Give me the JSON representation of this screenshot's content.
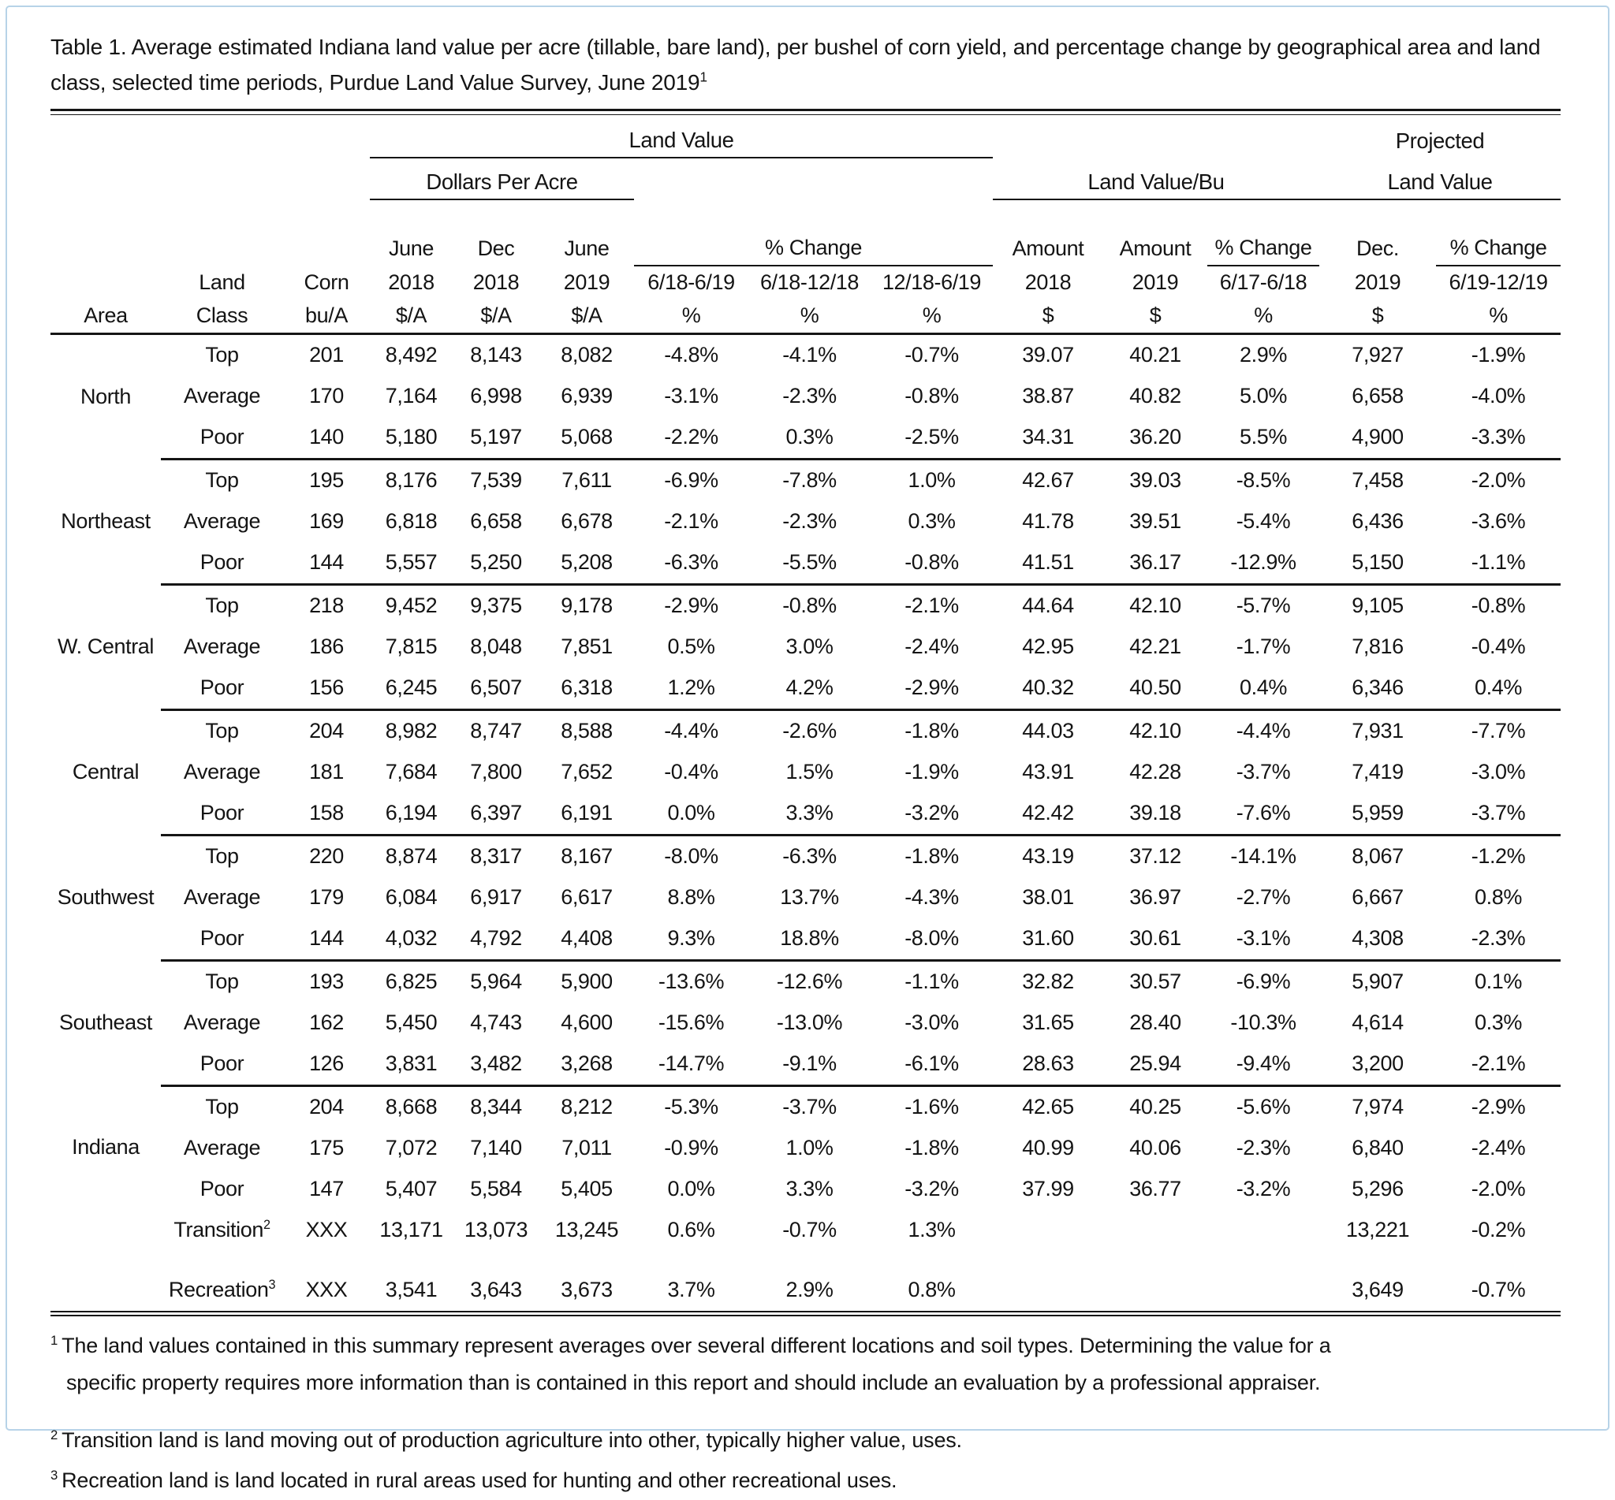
{
  "title": {
    "text": "Table 1. Average estimated Indiana land value per acre (tillable, bare land), per bushel of corn yield, and percentage change by geographical area and land class, selected time periods, Purdue Land Value Survey, June 2019",
    "superscript": "1"
  },
  "table": {
    "head": {
      "land_value": "Land Value",
      "dollars_per_acre": "Dollars Per Acre",
      "pct_change": "% Change",
      "land_value_bu": "Land Value/Bu",
      "projected_l1": "Projected",
      "projected_l2": "Land Value",
      "area": "Area",
      "land": "Land",
      "class": "Class",
      "corn": "Corn",
      "bua": "bu/A",
      "june": "June",
      "dec": "Dec",
      "dec_dot": "Dec.",
      "y2018": "2018",
      "y2019": "2019",
      "dpa": "$/A",
      "dollar": "$",
      "pct": "%",
      "amount": "Amount",
      "p_618_619": "6/18-6/19",
      "p_618_1218": "6/18-12/18",
      "p_1218_619": "12/18-6/19",
      "p_617_618": "6/17-6/18",
      "p_619_1219": "6/19-12/19"
    },
    "sections": [
      {
        "area": "North",
        "rows": [
          {
            "land_class": "Top",
            "sup": "",
            "values": [
              "201",
              "8,492",
              "8,143",
              "8,082",
              "-4.8%",
              "-4.1%",
              "-0.7%",
              "39.07",
              "40.21",
              "2.9%",
              "7,927",
              "-1.9%"
            ]
          },
          {
            "land_class": "Average",
            "sup": "",
            "values": [
              "170",
              "7,164",
              "6,998",
              "6,939",
              "-3.1%",
              "-2.3%",
              "-0.8%",
              "38.87",
              "40.82",
              "5.0%",
              "6,658",
              "-4.0%"
            ]
          },
          {
            "land_class": "Poor",
            "sup": "",
            "values": [
              "140",
              "5,180",
              "5,197",
              "5,068",
              "-2.2%",
              "0.3%",
              "-2.5%",
              "34.31",
              "36.20",
              "5.5%",
              "4,900",
              "-3.3%"
            ]
          }
        ]
      },
      {
        "area": "Northeast",
        "rows": [
          {
            "land_class": "Top",
            "sup": "",
            "values": [
              "195",
              "8,176",
              "7,539",
              "7,611",
              "-6.9%",
              "-7.8%",
              "1.0%",
              "42.67",
              "39.03",
              "-8.5%",
              "7,458",
              "-2.0%"
            ]
          },
          {
            "land_class": "Average",
            "sup": "",
            "values": [
              "169",
              "6,818",
              "6,658",
              "6,678",
              "-2.1%",
              "-2.3%",
              "0.3%",
              "41.78",
              "39.51",
              "-5.4%",
              "6,436",
              "-3.6%"
            ]
          },
          {
            "land_class": "Poor",
            "sup": "",
            "values": [
              "144",
              "5,557",
              "5,250",
              "5,208",
              "-6.3%",
              "-5.5%",
              "-0.8%",
              "41.51",
              "36.17",
              "-12.9%",
              "5,150",
              "-1.1%"
            ]
          }
        ]
      },
      {
        "area": "W. Central",
        "rows": [
          {
            "land_class": "Top",
            "sup": "",
            "values": [
              "218",
              "9,452",
              "9,375",
              "9,178",
              "-2.9%",
              "-0.8%",
              "-2.1%",
              "44.64",
              "42.10",
              "-5.7%",
              "9,105",
              "-0.8%"
            ]
          },
          {
            "land_class": "Average",
            "sup": "",
            "values": [
              "186",
              "7,815",
              "8,048",
              "7,851",
              "0.5%",
              "3.0%",
              "-2.4%",
              "42.95",
              "42.21",
              "-1.7%",
              "7,816",
              "-0.4%"
            ]
          },
          {
            "land_class": "Poor",
            "sup": "",
            "values": [
              "156",
              "6,245",
              "6,507",
              "6,318",
              "1.2%",
              "4.2%",
              "-2.9%",
              "40.32",
              "40.50",
              "0.4%",
              "6,346",
              "0.4%"
            ]
          }
        ]
      },
      {
        "area": "Central",
        "rows": [
          {
            "land_class": "Top",
            "sup": "",
            "values": [
              "204",
              "8,982",
              "8,747",
              "8,588",
              "-4.4%",
              "-2.6%",
              "-1.8%",
              "44.03",
              "42.10",
              "-4.4%",
              "7,931",
              "-7.7%"
            ]
          },
          {
            "land_class": "Average",
            "sup": "",
            "values": [
              "181",
              "7,684",
              "7,800",
              "7,652",
              "-0.4%",
              "1.5%",
              "-1.9%",
              "43.91",
              "42.28",
              "-3.7%",
              "7,419",
              "-3.0%"
            ]
          },
          {
            "land_class": "Poor",
            "sup": "",
            "values": [
              "158",
              "6,194",
              "6,397",
              "6,191",
              "0.0%",
              "3.3%",
              "-3.2%",
              "42.42",
              "39.18",
              "-7.6%",
              "5,959",
              "-3.7%"
            ]
          }
        ]
      },
      {
        "area": "Southwest",
        "rows": [
          {
            "land_class": "Top",
            "sup": "",
            "values": [
              "220",
              "8,874",
              "8,317",
              "8,167",
              "-8.0%",
              "-6.3%",
              "-1.8%",
              "43.19",
              "37.12",
              "-14.1%",
              "8,067",
              "-1.2%"
            ]
          },
          {
            "land_class": "Average",
            "sup": "",
            "values": [
              "179",
              "6,084",
              "6,917",
              "6,617",
              "8.8%",
              "13.7%",
              "-4.3%",
              "38.01",
              "36.97",
              "-2.7%",
              "6,667",
              "0.8%"
            ]
          },
          {
            "land_class": "Poor",
            "sup": "",
            "values": [
              "144",
              "4,032",
              "4,792",
              "4,408",
              "9.3%",
              "18.8%",
              "-8.0%",
              "31.60",
              "30.61",
              "-3.1%",
              "4,308",
              "-2.3%"
            ]
          }
        ]
      },
      {
        "area": "Southeast",
        "rows": [
          {
            "land_class": "Top",
            "sup": "",
            "values": [
              "193",
              "6,825",
              "5,964",
              "5,900",
              "-13.6%",
              "-12.6%",
              "-1.1%",
              "32.82",
              "30.57",
              "-6.9%",
              "5,907",
              "0.1%"
            ]
          },
          {
            "land_class": "Average",
            "sup": "",
            "values": [
              "162",
              "5,450",
              "4,743",
              "4,600",
              "-15.6%",
              "-13.0%",
              "-3.0%",
              "31.65",
              "28.40",
              "-10.3%",
              "4,614",
              "0.3%"
            ]
          },
          {
            "land_class": "Poor",
            "sup": "",
            "values": [
              "126",
              "3,831",
              "3,482",
              "3,268",
              "-14.7%",
              "-9.1%",
              "-6.1%",
              "28.63",
              "25.94",
              "-9.4%",
              "3,200",
              "-2.1%"
            ]
          }
        ]
      },
      {
        "area": "Indiana",
        "rows": [
          {
            "land_class": "Top",
            "sup": "",
            "values": [
              "204",
              "8,668",
              "8,344",
              "8,212",
              "-5.3%",
              "-3.7%",
              "-1.6%",
              "42.65",
              "40.25",
              "-5.6%",
              "7,974",
              "-2.9%"
            ]
          },
          {
            "land_class": "Average",
            "sup": "",
            "values": [
              "175",
              "7,072",
              "7,140",
              "7,011",
              "-0.9%",
              "1.0%",
              "-1.8%",
              "40.99",
              "40.06",
              "-2.3%",
              "6,840",
              "-2.4%"
            ]
          },
          {
            "land_class": "Poor",
            "sup": "",
            "values": [
              "147",
              "5,407",
              "5,584",
              "5,405",
              "0.0%",
              "3.3%",
              "-3.2%",
              "37.99",
              "36.77",
              "-3.2%",
              "5,296",
              "-2.0%"
            ]
          },
          {
            "land_class": "Transition",
            "sup": "2",
            "values": [
              "XXX",
              "13,171",
              "13,073",
              "13,245",
              "0.6%",
              "-0.7%",
              "1.3%",
              "",
              "",
              "",
              "13,221",
              "-0.2%"
            ]
          },
          {
            "land_class": "Recreation",
            "sup": "3",
            "gap_before": true,
            "values": [
              "XXX",
              "3,541",
              "3,643",
              "3,673",
              "3.7%",
              "2.9%",
              "0.8%",
              "",
              "",
              "",
              "3,649",
              "-0.7%"
            ]
          }
        ]
      }
    ]
  },
  "footnotes": [
    {
      "sup": "1",
      "text": "The land values contained in this summary represent averages over several different locations and soil types. Determining the value for a specific property requires more information than is contained in this report and should include an evaluation by a professional appraiser."
    },
    {
      "sup": "2",
      "text": "Transition land is land moving out of production agriculture into other, typically higher value, uses."
    },
    {
      "sup": "3",
      "text": "Recreation land is land located in rural areas used for hunting and other recreational uses."
    }
  ]
}
